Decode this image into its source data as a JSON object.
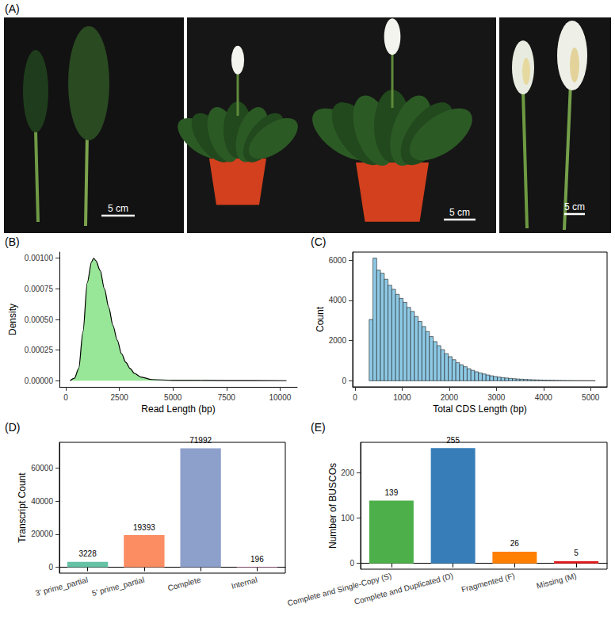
{
  "photo_panel": {
    "panel_label": "(A)",
    "scale_bars": [
      "5 cm",
      "5 cm",
      "5 cm"
    ]
  },
  "chart_data": [
    {
      "panel_label": "(B)",
      "type": "density",
      "x_label": "Read Length (bp)",
      "y_label": "Density",
      "x": [
        200,
        400,
        600,
        800,
        1000,
        1200,
        1300,
        1400,
        1600,
        1800,
        2000,
        2200,
        2400,
        2600,
        2800,
        3000,
        3200,
        3500,
        4000,
        5000,
        7500,
        10300
      ],
      "values": [
        0,
        2e-05,
        0.0001,
        0.0004,
        0.0008,
        0.00097,
        0.001,
        0.00098,
        0.0009,
        0.00075,
        0.0006,
        0.00045,
        0.00033,
        0.00022,
        0.00015,
        0.0001,
        6e-05,
        3e-05,
        1e-05,
        3e-06,
        1e-06,
        0
      ],
      "color": "#98e698",
      "xlim": [
        -300,
        10800
      ],
      "xticks": [
        0,
        2500,
        5000,
        7500,
        10000
      ],
      "ylim": [
        -5e-05,
        0.00105
      ],
      "yticks": [
        {
          "value": 0,
          "label": "0.00000"
        },
        {
          "value": 0.00025,
          "label": "0.00025"
        },
        {
          "value": 0.0005,
          "label": "0.00050"
        },
        {
          "value": 0.00075,
          "label": "0.00075"
        },
        {
          "value": 0.001,
          "label": "0.00100"
        }
      ],
      "grid": false
    },
    {
      "panel_label": "(C)",
      "type": "histogram",
      "x_label": "Total CDS Length (bp)",
      "y_label": "Count",
      "bins": [
        300,
        380,
        460,
        540,
        620,
        700,
        780,
        860,
        940,
        1020,
        1100,
        1180,
        1260,
        1340,
        1420,
        1500,
        1580,
        1660,
        1740,
        1820,
        1900,
        1980,
        2060,
        2140,
        2220,
        2300,
        2380,
        2460,
        2540,
        2620,
        2700,
        2780,
        2860,
        2940,
        3020,
        3100,
        3180,
        3260,
        3340,
        3420,
        3500,
        3580,
        3660,
        3740,
        3820,
        3900,
        3980,
        4060,
        4140,
        4220,
        4300,
        4380,
        4460,
        4540,
        4620,
        4700,
        4780,
        4860,
        4940,
        5020,
        5100
      ],
      "values": [
        3050,
        6100,
        5500,
        5350,
        5050,
        4750,
        4550,
        4300,
        4100,
        3900,
        3650,
        3450,
        3200,
        2950,
        2700,
        2450,
        2200,
        1950,
        1750,
        1550,
        1350,
        1200,
        1050,
        900,
        800,
        700,
        600,
        520,
        450,
        390,
        340,
        290,
        250,
        215,
        185,
        160,
        140,
        120,
        105,
        90,
        80,
        70,
        60,
        52,
        45,
        40,
        35,
        30,
        26,
        22,
        19,
        16,
        14,
        12,
        10,
        8,
        7,
        6,
        5,
        4
      ],
      "color": "#8ecae6",
      "xlim": [
        -50,
        5350
      ],
      "xticks": [
        0,
        1000,
        2000,
        3000,
        4000,
        5000
      ],
      "ylim": [
        -300,
        6400
      ],
      "yticks": [
        0,
        2000,
        4000,
        6000
      ],
      "grid": false
    },
    {
      "panel_label": "(D)",
      "type": "bar",
      "y_label": "Transcript Count",
      "categories": [
        "3' prime_partial",
        "5' prime_partial",
        "Complete",
        "Internal"
      ],
      "values": [
        3228,
        19393,
        71992,
        196
      ],
      "colors": [
        "#66c2a5",
        "#fc8d62",
        "#8da0cb",
        "#e78ac3"
      ],
      "ylim": [
        -3600,
        75600
      ],
      "yticks": [
        0,
        20000,
        40000,
        60000
      ],
      "data_labels": true,
      "grid": false
    },
    {
      "panel_label": "(E)",
      "type": "bar",
      "y_label": "Number of BUSCOs",
      "categories": [
        "Complete and Single-Copy (S)",
        "Complete and Duplicated (D)",
        "Fragmented (F)",
        "Missing (M)"
      ],
      "values": [
        139,
        255,
        26,
        5
      ],
      "colors": [
        "#4daf4a",
        "#377eb8",
        "#ff7f00",
        "#e41a1c"
      ],
      "ylim": [
        -12.75,
        267.75
      ],
      "yticks": [
        0,
        100,
        200
      ],
      "data_labels": true,
      "grid": false
    }
  ]
}
